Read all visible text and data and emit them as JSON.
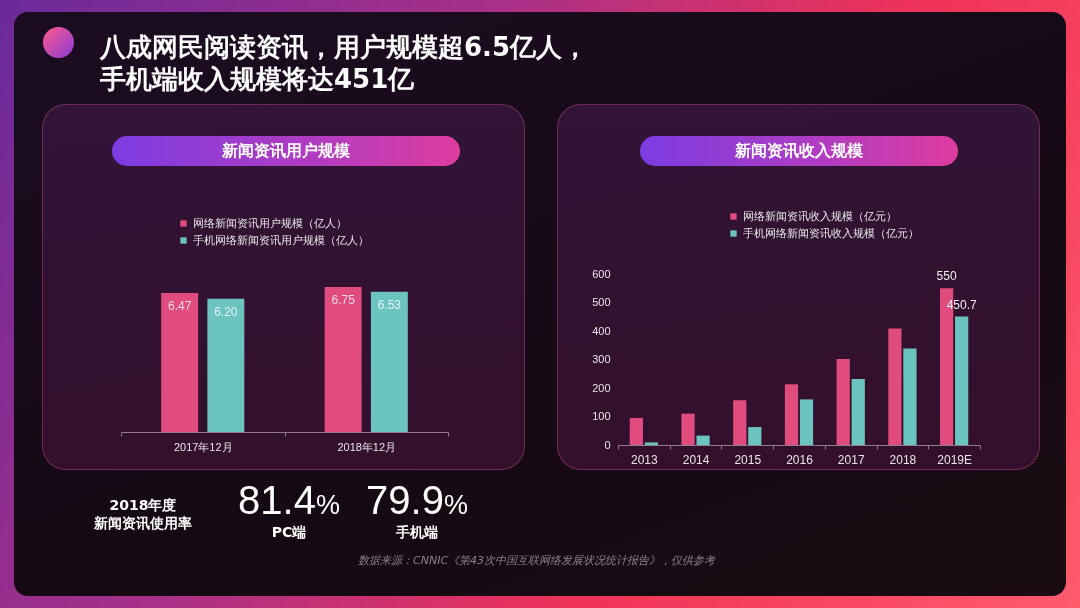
{
  "chart_data": [
    {
      "type": "other",
      "title": "八成网民阅读资讯，用户规模超6.5亿人，手机端收入规模将达451亿"
    },
    {
      "type": "bar",
      "title": "新闻资讯用户规模",
      "categories": [
        "2017年12月",
        "2018年12月"
      ],
      "series": [
        {
          "name": "网络新闻资讯用户规模（亿人）",
          "color": "#e04c7e",
          "values": [
            6.47,
            6.75
          ],
          "value_labels": [
            "6.47",
            "6.75"
          ]
        },
        {
          "name": "手机网络新闻资讯用户规模（亿人）",
          "color": "#6cc4c0",
          "values": [
            6.2,
            6.53
          ],
          "value_labels": [
            "6.20",
            "6.53"
          ]
        }
      ],
      "tick_labels": "x",
      "legend": "top"
    },
    {
      "type": "bar",
      "title": "新闻资讯收入规模",
      "categories": [
        "2013",
        "2014",
        "2015",
        "2016",
        "2017",
        "2018",
        "2019E"
      ],
      "series": [
        {
          "name": "网络新闻资讯收入规模（亿元）",
          "color": "#e04c7e",
          "values": [
            95,
            110,
            157,
            213,
            302,
            409,
            550
          ],
          "value_labels": [
            null,
            null,
            null,
            null,
            null,
            null,
            "550"
          ]
        },
        {
          "name": "手机网络新闻资讯收入规模（亿元）",
          "color": "#6cc4c0",
          "values": [
            9,
            33,
            63,
            160,
            232,
            339,
            450.7
          ],
          "value_labels": [
            null,
            null,
            null,
            null,
            null,
            null,
            "450.7"
          ]
        }
      ],
      "ylim": [
        0,
        600
      ],
      "yticks": [
        0,
        100,
        200,
        300,
        400,
        500,
        600
      ],
      "legend": "top"
    },
    {
      "type": "other",
      "title": "2018年度",
      "subtitle": "新闻资讯使用率",
      "categories": [
        "PC端",
        "手机端"
      ],
      "value_labels": [
        "81.4%",
        "79.9%"
      ],
      "annotations": [
        "数据来源：CNNIC《第43次中国互联网络发展状况统计报告》，仅供参考"
      ]
    }
  ]
}
